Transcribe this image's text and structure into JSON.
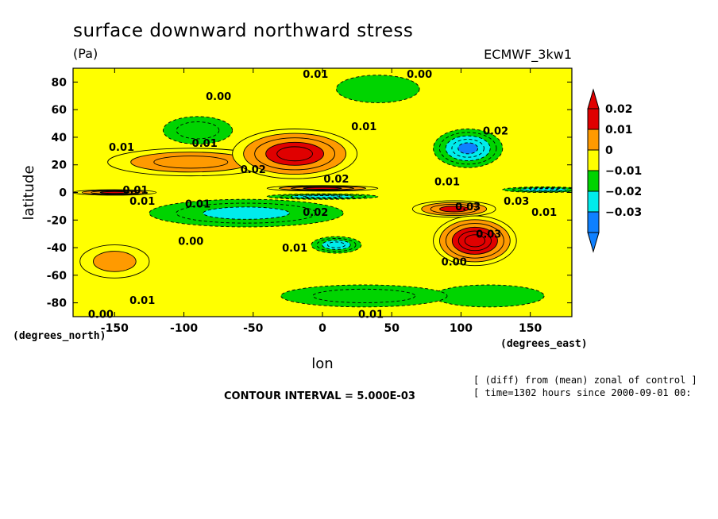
{
  "chart_data": {
    "type": "heatmap",
    "title": "surface downward northward stress",
    "units": "(Pa)",
    "model_label": "ECMWF_3kw1",
    "xlabel": "lon",
    "ylabel": "latitude",
    "x_unit_label": "(degrees_east)",
    "y_unit_label": "(degrees_north)",
    "xlim": [
      -180,
      180
    ],
    "ylim": [
      -90,
      90
    ],
    "x_ticks": [
      -150,
      -100,
      -50,
      0,
      50,
      100,
      150
    ],
    "y_ticks": [
      -80,
      -60,
      -40,
      -20,
      0,
      20,
      40,
      60,
      80
    ],
    "x_tick_labels": [
      "-150",
      "-100",
      "-50",
      "0",
      "50",
      "100",
      "150"
    ],
    "y_tick_labels": [
      "-80",
      "-60",
      "-40",
      "-20",
      "0",
      "20",
      "40",
      "60",
      "80"
    ],
    "colorbar": {
      "levels": [
        -0.03,
        -0.02,
        -0.01,
        0,
        0.01,
        0.02
      ],
      "labels": [
        "0.02",
        "0.01",
        "0",
        "−0.01",
        "−0.02",
        "−0.03"
      ],
      "colors": [
        "#e00000",
        "#ff9a00",
        "#ffff00",
        "#00d400",
        "#00ecec",
        "#0e80ff"
      ],
      "top_color": "#e00000",
      "bottom_color": "#0e80ff"
    },
    "contour_interval_text": "CONTOUR INTERVAL = 5.000E-03",
    "diff_note": "[ (diff) from (mean) zonal of control ]",
    "time_note": "[ time=1302 hours since 2000-09-01 00:",
    "regions": [
      {
        "lon": -20,
        "lat": 28,
        "value": 0.025,
        "rx": 45,
        "ry": 18
      },
      {
        "lon": -95,
        "lat": 22,
        "value": 0.015,
        "rx": 60,
        "ry": 10
      },
      {
        "lon": 110,
        "lat": -35,
        "value": 0.03,
        "rx": 30,
        "ry": 18
      },
      {
        "lon": 95,
        "lat": -12,
        "value": 0.02,
        "rx": 30,
        "ry": 6
      },
      {
        "lon": 105,
        "lat": 32,
        "value": -0.025,
        "rx": 25,
        "ry": 14
      },
      {
        "lon": -55,
        "lat": -15,
        "value": -0.015,
        "rx": 70,
        "ry": 10
      },
      {
        "lon": 10,
        "lat": -38,
        "value": -0.02,
        "rx": 18,
        "ry": 6
      },
      {
        "lon": -90,
        "lat": 45,
        "value": -0.012,
        "rx": 25,
        "ry": 10
      },
      {
        "lon": -150,
        "lat": -50,
        "value": 0.012,
        "rx": 25,
        "ry": 12
      },
      {
        "lon": 0,
        "lat": 3,
        "value": 0.02,
        "rx": 40,
        "ry": 2
      },
      {
        "lon": 0,
        "lat": -3,
        "value": -0.02,
        "rx": 40,
        "ry": 2
      },
      {
        "lon": -150,
        "lat": 0,
        "value": 0.02,
        "rx": 30,
        "ry": 2
      },
      {
        "lon": 160,
        "lat": 2,
        "value": -0.02,
        "rx": 30,
        "ry": 2
      },
      {
        "lon": 40,
        "lat": 75,
        "value": -0.005,
        "rx": 30,
        "ry": 10
      },
      {
        "lon": 30,
        "lat": -75,
        "value": -0.012,
        "rx": 60,
        "ry": 8
      },
      {
        "lon": 120,
        "lat": -75,
        "value": -0.006,
        "rx": 40,
        "ry": 8
      }
    ],
    "annotations": [
      {
        "text": "0.01",
        "lon": -5,
        "lat": 86
      },
      {
        "text": "0.00",
        "lon": 70,
        "lat": 86
      },
      {
        "text": "0.00",
        "lon": -75,
        "lat": 70
      },
      {
        "text": "0.01",
        "lon": 30,
        "lat": 48
      },
      {
        "text": "0.02",
        "lon": 125,
        "lat": 45
      },
      {
        "text": "0.01",
        "lon": -145,
        "lat": 33
      },
      {
        "text": "0.01",
        "lon": -85,
        "lat": 36
      },
      {
        "text": "0.02",
        "lon": -50,
        "lat": 17
      },
      {
        "text": "0.02",
        "lon": 10,
        "lat": 10
      },
      {
        "text": "0.01",
        "lon": 90,
        "lat": 8
      },
      {
        "text": "0.01",
        "lon": -135,
        "lat": 2
      },
      {
        "text": "0.01",
        "lon": -130,
        "lat": -6
      },
      {
        "text": "0.01",
        "lon": -90,
        "lat": -8
      },
      {
        "text": "0.02",
        "lon": -5,
        "lat": -14
      },
      {
        "text": "0.03",
        "lon": 105,
        "lat": -10
      },
      {
        "text": "0.03",
        "lon": 140,
        "lat": -6
      },
      {
        "text": "0.01",
        "lon": 160,
        "lat": -14
      },
      {
        "text": "0.00",
        "lon": -95,
        "lat": -35
      },
      {
        "text": "0.01",
        "lon": -20,
        "lat": -40
      },
      {
        "text": "0.03",
        "lon": 120,
        "lat": -30
      },
      {
        "text": "0.00",
        "lon": 95,
        "lat": -50
      },
      {
        "text": "0.01",
        "lon": -130,
        "lat": -78
      },
      {
        "text": "0.00",
        "lon": -160,
        "lat": -88
      },
      {
        "text": "0.01",
        "lon": 35,
        "lat": -88
      }
    ]
  }
}
